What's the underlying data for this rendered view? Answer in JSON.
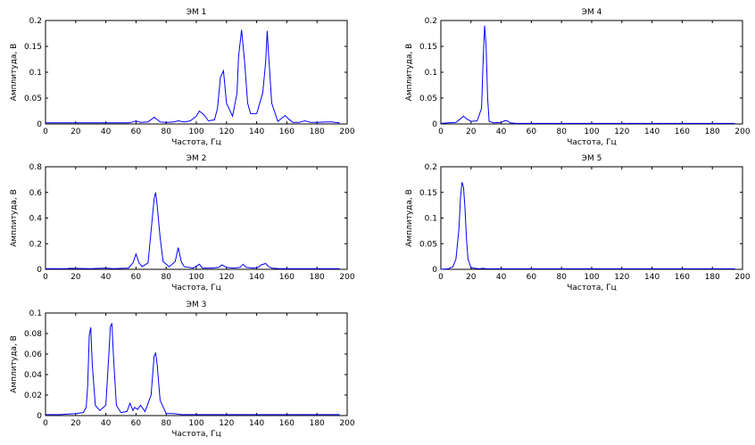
{
  "colors": {
    "series": "#0000ff",
    "axes": "#000000",
    "background": "#ffffff"
  },
  "chart_data": [
    {
      "type": "line",
      "title": "ЭМ 1",
      "xlabel": "Частота, Гц",
      "ylabel": "Амплитуда, В",
      "xlim": [
        0,
        200
      ],
      "ylim": [
        0,
        0.2
      ],
      "xticks": [
        "0",
        "20",
        "40",
        "60",
        "80",
        "100",
        "120",
        "140",
        "160",
        "180",
        "200"
      ],
      "yticks": [
        "0",
        "0.05",
        "0.1",
        "0.15",
        "0.2"
      ],
      "grid": false,
      "series": [
        {
          "x": [
            0,
            20,
            40,
            55,
            58,
            60,
            63,
            68,
            72,
            76,
            80,
            85,
            88,
            92,
            96,
            100,
            102,
            105,
            108,
            112,
            114,
            116,
            118,
            120,
            124,
            127,
            128,
            130,
            132,
            134,
            136,
            140,
            142,
            144,
            146,
            147,
            148,
            150,
            154,
            157,
            159,
            161,
            164,
            168,
            172,
            176,
            180,
            186,
            190,
            192,
            195
          ],
          "y": [
            0.002,
            0.002,
            0.002,
            0.002,
            0.004,
            0.006,
            0.003,
            0.004,
            0.013,
            0.004,
            0.003,
            0.004,
            0.006,
            0.004,
            0.006,
            0.015,
            0.025,
            0.018,
            0.006,
            0.008,
            0.03,
            0.09,
            0.103,
            0.04,
            0.015,
            0.06,
            0.13,
            0.182,
            0.12,
            0.04,
            0.02,
            0.02,
            0.04,
            0.06,
            0.12,
            0.18,
            0.13,
            0.04,
            0.005,
            0.012,
            0.016,
            0.01,
            0.003,
            0.003,
            0.006,
            0.003,
            0.003,
            0.004,
            0.004,
            0.003,
            0.002
          ]
        }
      ]
    },
    {
      "type": "line",
      "title": "ЭМ 2",
      "xlabel": "Частота, Гц",
      "ylabel": "Амплитуда, В",
      "xlim": [
        0,
        200
      ],
      "ylim": [
        0,
        0.8
      ],
      "xticks": [
        "0",
        "20",
        "40",
        "60",
        "80",
        "100",
        "120",
        "140",
        "160",
        "180",
        "200"
      ],
      "yticks": [
        "0",
        "0.2",
        "0.4",
        "0.6",
        "0.8"
      ],
      "grid": false,
      "series": [
        {
          "x": [
            0,
            14,
            16,
            30,
            40,
            45,
            55,
            58,
            60,
            62,
            64,
            68,
            70,
            72,
            73,
            74,
            76,
            78,
            82,
            86,
            88,
            90,
            92,
            98,
            102,
            104,
            110,
            115,
            117,
            120,
            125,
            129,
            131,
            133,
            138,
            141,
            143,
            146,
            148,
            150,
            155,
            160,
            180,
            195
          ],
          "y": [
            0.005,
            0.005,
            0.008,
            0.005,
            0.01,
            0.005,
            0.01,
            0.05,
            0.12,
            0.05,
            0.02,
            0.05,
            0.3,
            0.55,
            0.6,
            0.5,
            0.25,
            0.06,
            0.02,
            0.06,
            0.17,
            0.06,
            0.02,
            0.01,
            0.04,
            0.01,
            0.01,
            0.015,
            0.035,
            0.015,
            0.01,
            0.015,
            0.04,
            0.015,
            0.01,
            0.015,
            0.035,
            0.045,
            0.02,
            0.01,
            0.005,
            0.005,
            0.005,
            0.005
          ]
        }
      ]
    },
    {
      "type": "line",
      "title": "ЭМ 3",
      "xlabel": "Частота, Гц",
      "ylabel": "Амплитуда, В",
      "xlim": [
        0,
        200
      ],
      "ylim": [
        0,
        0.1
      ],
      "xticks": [
        "0",
        "20",
        "40",
        "60",
        "80",
        "100",
        "120",
        "140",
        "160",
        "180",
        "200"
      ],
      "yticks": [
        "0",
        "0.02",
        "0.04",
        "0.06",
        "0.08",
        "0.1"
      ],
      "grid": false,
      "series": [
        {
          "x": [
            0,
            10,
            20,
            25,
            27,
            28,
            29,
            30,
            31,
            33,
            36,
            40,
            42,
            43,
            44,
            45,
            47,
            50,
            54,
            56,
            58,
            59,
            61,
            63,
            66,
            70,
            72,
            73,
            74,
            76,
            80,
            85,
            90,
            100,
            120,
            150,
            180,
            195
          ],
          "y": [
            0.001,
            0.001,
            0.002,
            0.003,
            0.008,
            0.03,
            0.078,
            0.086,
            0.05,
            0.01,
            0.005,
            0.01,
            0.06,
            0.087,
            0.09,
            0.06,
            0.01,
            0.003,
            0.004,
            0.012,
            0.005,
            0.008,
            0.006,
            0.01,
            0.004,
            0.02,
            0.058,
            0.061,
            0.05,
            0.015,
            0.002,
            0.002,
            0.001,
            0.001,
            0.001,
            0.001,
            0.001,
            0.001
          ]
        }
      ]
    },
    {
      "type": "line",
      "title": "ЭМ 4",
      "xlabel": "Частота, Гц",
      "ylabel": "Амплитуда, В",
      "xlim": [
        0,
        200
      ],
      "ylim": [
        0,
        0.2
      ],
      "xticks": [
        "0",
        "20",
        "40",
        "60",
        "80",
        "100",
        "120",
        "140",
        "160",
        "180",
        "200"
      ],
      "yticks": [
        "0",
        "0.05",
        "0.1",
        "0.15",
        "0.2"
      ],
      "grid": false,
      "series": [
        {
          "x": [
            0,
            5,
            10,
            13,
            15,
            17,
            20,
            24,
            27,
            28,
            29,
            30,
            31,
            32,
            35,
            40,
            42,
            44,
            46,
            50,
            60,
            100,
            150,
            195
          ],
          "y": [
            0.001,
            0.002,
            0.003,
            0.01,
            0.015,
            0.01,
            0.005,
            0.006,
            0.03,
            0.12,
            0.19,
            0.15,
            0.05,
            0.005,
            0.002,
            0.003,
            0.006,
            0.006,
            0.002,
            0.001,
            0.001,
            0.001,
            0.001,
            0.001
          ]
        }
      ]
    },
    {
      "type": "line",
      "title": "ЭМ 5",
      "xlabel": "Частота, Гц",
      "ylabel": "Амплитуда, В",
      "xlim": [
        0,
        200
      ],
      "ylim": [
        0,
        0.2
      ],
      "xticks": [
        "0",
        "20",
        "40",
        "60",
        "80",
        "100",
        "120",
        "140",
        "160",
        "180",
        "200"
      ],
      "yticks": [
        "0",
        "0.05",
        "0.1",
        "0.15",
        "0.2"
      ],
      "grid": false,
      "series": [
        {
          "x": [
            0,
            5,
            8,
            10,
            12,
            13,
            14,
            15,
            16,
            17,
            18,
            20,
            25,
            28,
            30,
            35,
            60,
            100,
            150,
            195
          ],
          "y": [
            0,
            0.001,
            0.005,
            0.02,
            0.08,
            0.14,
            0.17,
            0.16,
            0.12,
            0.06,
            0.02,
            0.003,
            0.001,
            0.002,
            0.001,
            0.001,
            0.001,
            0.001,
            0.001,
            0.001
          ]
        }
      ]
    }
  ]
}
